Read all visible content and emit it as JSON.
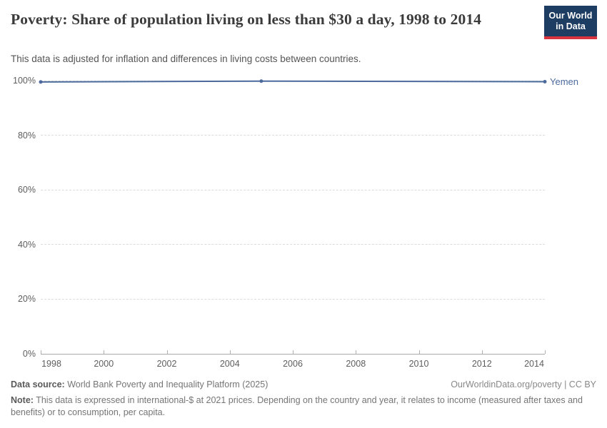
{
  "header": {
    "title": "Poverty: Share of population living on less than $30 a day, 1998 to 2014",
    "subtitle": "This data is adjusted for inflation and differences in living costs between countries.",
    "logo": {
      "line1": "Our World",
      "line2": "in Data"
    }
  },
  "chart_data": {
    "type": "line",
    "title": "Poverty: Share of population living on less than $30 a day, 1998 to 2014",
    "x": [
      1998,
      2005,
      2014
    ],
    "series": [
      {
        "name": "Yemen",
        "values": [
          99.5,
          99.8,
          99.6
        ],
        "color": "#4c6a9c"
      }
    ],
    "xlabel": "",
    "ylabel": "",
    "xlim": [
      1998,
      2014
    ],
    "ylim": [
      0,
      100
    ],
    "y_ticks": [
      0,
      20,
      40,
      60,
      80,
      100
    ],
    "y_tick_labels": [
      "0%",
      "20%",
      "40%",
      "60%",
      "80%",
      "100%"
    ],
    "x_ticks": [
      1998,
      2000,
      2002,
      2004,
      2006,
      2008,
      2010,
      2012,
      2014
    ],
    "x_tick_labels": [
      "1998",
      "2000",
      "2002",
      "2004",
      "2006",
      "2008",
      "2010",
      "2012",
      "2014"
    ],
    "grid": true,
    "legend_position": "end-of-line-label"
  },
  "footer": {
    "source_label": "Data source:",
    "source_text": "World Bank Poverty and Inequality Platform (2025)",
    "link_text": "OurWorldinData.org/poverty | CC BY",
    "note_label": "Note:",
    "note_text": "This data is expressed in international-$ at 2021 prices. Depending on the country and year, it relates to income (measured after taxes and benefits) or to consumption, per capita."
  },
  "colors": {
    "accent": "#4c6a9c",
    "logo_bg": "#1d3d63",
    "logo_stripe": "#d7343f",
    "grid": "#dcdcdc",
    "axis": "#a8a8a8"
  }
}
